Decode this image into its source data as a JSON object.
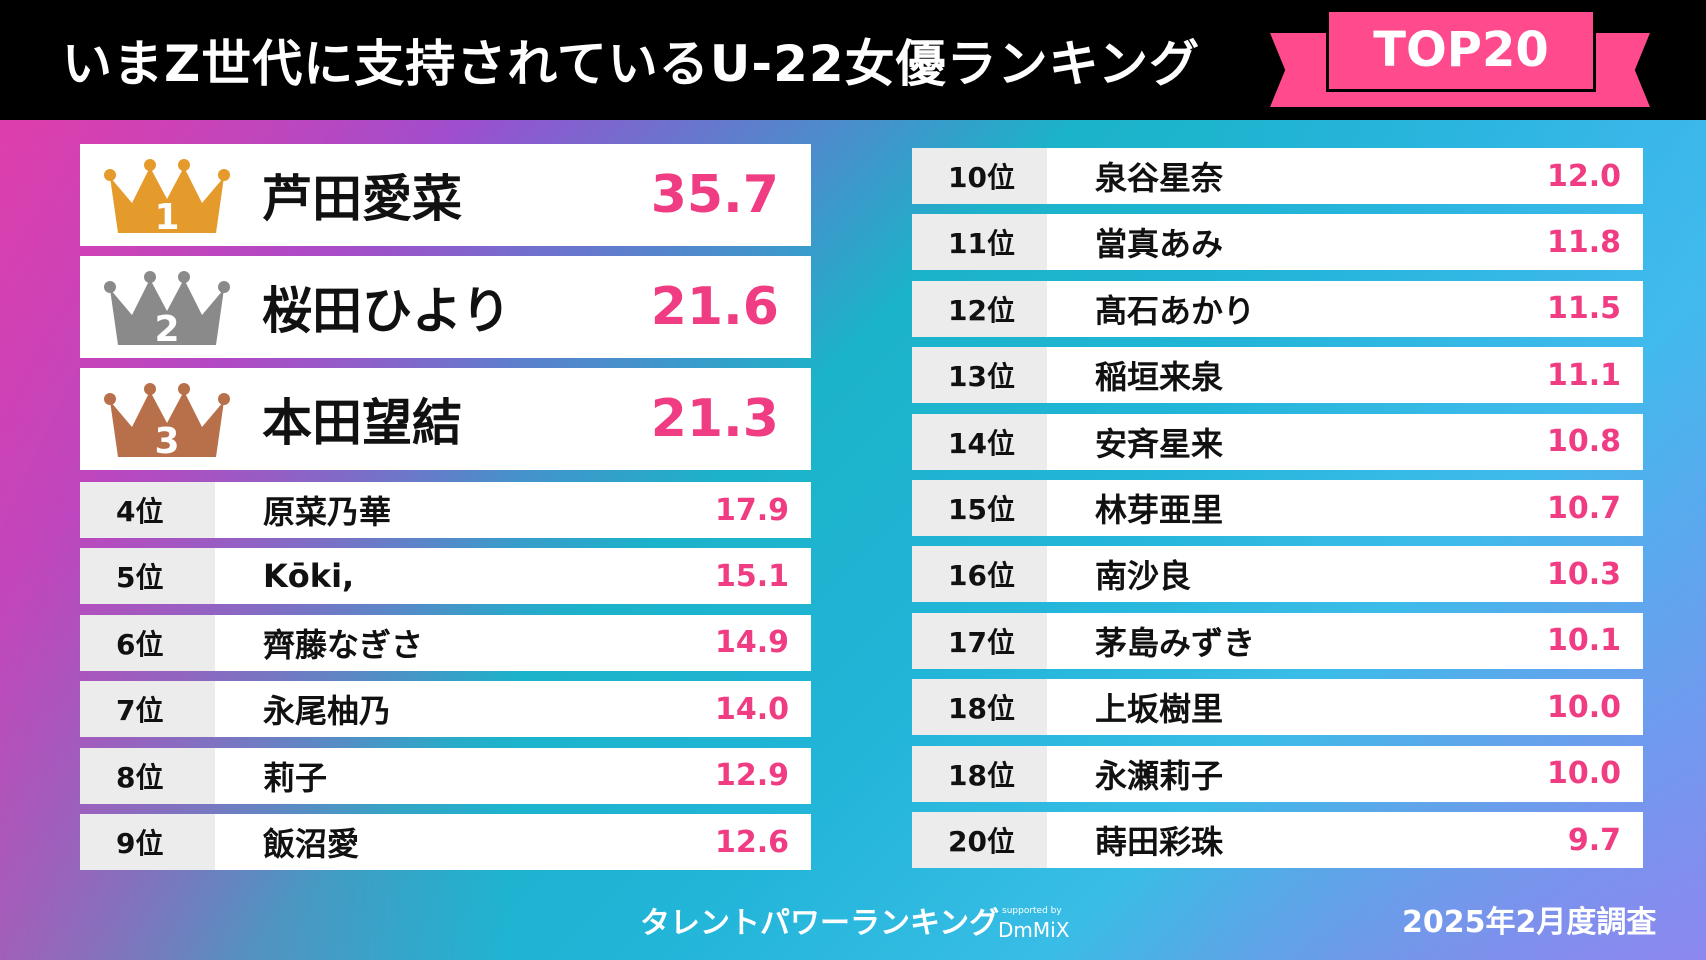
{
  "header": {
    "title": "いまZ世代に支持されているU-22女優ランキング",
    "badge": "TOP20",
    "accent": "#ff4a8d"
  },
  "top3": [
    {
      "rank": "1",
      "name": "芦田愛菜",
      "score": "35.7",
      "crown_color": "#e59a2c"
    },
    {
      "rank": "2",
      "name": "桜田ひより",
      "score": "21.6",
      "crown_color": "#8a8a8a"
    },
    {
      "rank": "3",
      "name": "本田望結",
      "score": "21.3",
      "crown_color": "#b8704a"
    }
  ],
  "left": [
    {
      "rank": "4位",
      "name": "原菜乃華",
      "score": "17.9"
    },
    {
      "rank": "5位",
      "name": "Kōki,",
      "score": "15.1"
    },
    {
      "rank": "6位",
      "name": "齊藤なぎさ",
      "score": "14.9"
    },
    {
      "rank": "7位",
      "name": "永尾柚乃",
      "score": "14.0"
    },
    {
      "rank": "8位",
      "name": "莉子",
      "score": "12.9"
    },
    {
      "rank": "9位",
      "name": "飯沼愛",
      "score": "12.6"
    }
  ],
  "right": [
    {
      "rank": "10位",
      "name": "泉谷星奈",
      "score": "12.0"
    },
    {
      "rank": "11位",
      "name": "當真あみ",
      "score": "11.8"
    },
    {
      "rank": "12位",
      "name": "髙石あかり",
      "score": "11.5"
    },
    {
      "rank": "13位",
      "name": "稲垣来泉",
      "score": "11.1"
    },
    {
      "rank": "14位",
      "name": "安斉星来",
      "score": "10.8"
    },
    {
      "rank": "15位",
      "name": "林芽亜里",
      "score": "10.7"
    },
    {
      "rank": "16位",
      "name": "南沙良",
      "score": "10.3"
    },
    {
      "rank": "17位",
      "name": "茅島みずき",
      "score": "10.1"
    },
    {
      "rank": "18位",
      "name": "上坂樹里",
      "score": "10.0"
    },
    {
      "rank": "18位",
      "name": "永瀬莉子",
      "score": "10.0"
    },
    {
      "rank": "20位",
      "name": "蒔田彩珠",
      "score": "9.7"
    }
  ],
  "footer": {
    "logo": "タレントパワーランキング",
    "supported": "supported by",
    "sponsor": "DmMiX",
    "date": "2025年2月度調査"
  }
}
